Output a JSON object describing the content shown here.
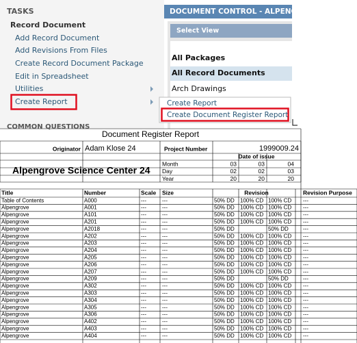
{
  "tasks": {
    "heading": "TASKS",
    "section": "Record Document",
    "items": [
      "Add Record Document",
      "Add Revisions From Files",
      "Create Record Document Package",
      "Edit in Spreadsheet",
      "Utilities",
      "Create Report"
    ],
    "footer": "COMMON QUESTIONS"
  },
  "document_control": {
    "title": "DOCUMENT CONTROL - ALPENG",
    "select_view": "Select View",
    "views": [
      "All Packages",
      "All Record Documents",
      "Arch Drawings"
    ]
  },
  "context_menu": {
    "items": [
      "Create Report",
      "Create Document Register Report"
    ]
  },
  "report": {
    "title": "Document Register Report",
    "originator_label": "Originator",
    "originator": "Adam Klose 24",
    "project_number_label": "Project Number",
    "project_number": "1999009.24",
    "project_name": "Alpengrove Science Center 24",
    "date_label": "Date of issue",
    "date_rows": [
      [
        "Month",
        "03",
        "03",
        "04"
      ],
      [
        "Day",
        "02",
        "02",
        "03"
      ],
      [
        "Year",
        "20",
        "20",
        "20"
      ]
    ],
    "columns": [
      "Title",
      "Number",
      "Scale",
      "Size",
      "Revision",
      "Revision Purpose"
    ],
    "rows": [
      [
        "Table of Contents",
        "A000",
        "---",
        "---",
        "50% DD",
        "100% CD",
        "100% CD",
        "---"
      ],
      [
        "Alpengrove",
        "A001",
        "---",
        "---",
        "50% DD",
        "100% CD",
        "100% CD",
        "---"
      ],
      [
        "Alpengrove",
        "A101",
        "---",
        "---",
        "50% DD",
        "100% CD",
        "100% CD",
        "---"
      ],
      [
        "Alpengrove",
        "A201",
        "---",
        "---",
        "50% DD",
        "100% CD",
        "100% CD",
        "---"
      ],
      [
        "Alpengrove",
        "A2018",
        "---",
        "---",
        "50% DD",
        null,
        "50% DD",
        "---"
      ],
      [
        "Alpengrove",
        "A202",
        "---",
        "---",
        "50% DD",
        "100% CD",
        "100% CD",
        "---"
      ],
      [
        "Alpengrove",
        "A203",
        "---",
        "---",
        "50% DD",
        "100% CD",
        "100% CD",
        "---"
      ],
      [
        "Alpengrove",
        "A204",
        "---",
        "---",
        "50% DD",
        "100% CD",
        "100% CD",
        "---"
      ],
      [
        "Alpengrove",
        "A205",
        "---",
        "---",
        "50% DD",
        "100% CD",
        "100% CD",
        "---"
      ],
      [
        "Alpengrove",
        "A206",
        "---",
        "---",
        "50% DD",
        "100% CD",
        "100% CD",
        "---"
      ],
      [
        "Alpengrove",
        "A207",
        "---",
        "---",
        "50% DD",
        "100% CD",
        "100% CD",
        "---"
      ],
      [
        "Alpengrove",
        "A209",
        "---",
        "---",
        "50% DD",
        null,
        "50% DD",
        "---"
      ],
      [
        "Alpengrove",
        "A302",
        "---",
        "---",
        "50% DD",
        "100% CD",
        "100% CD",
        "---"
      ],
      [
        "Alpengrove",
        "A303",
        "---",
        "---",
        "50% DD",
        "100% CD",
        "100% CD",
        "---"
      ],
      [
        "Alpengrove",
        "A304",
        "---",
        "---",
        "50% DD",
        "100% CD",
        "100% CD",
        "---"
      ],
      [
        "Alpengrove",
        "A305",
        "---",
        "---",
        "50% DD",
        "100% CD",
        "100% CD",
        "---"
      ],
      [
        "Alpengrove",
        "A306",
        "---",
        "---",
        "50% DD",
        "100% CD",
        "100% CD",
        "---"
      ],
      [
        "Alpengrove",
        "A402",
        "---",
        "---",
        "50% DD",
        "100% CD",
        "100% CD",
        "---"
      ],
      [
        "Alpengrove",
        "A403",
        "---",
        "---",
        "50% DD",
        "100% CD",
        "100% CD",
        "---"
      ],
      [
        "Alpengrove",
        "A404",
        "---",
        "---",
        "50% DD",
        "100% CD",
        "100% CD",
        "---"
      ]
    ]
  }
}
